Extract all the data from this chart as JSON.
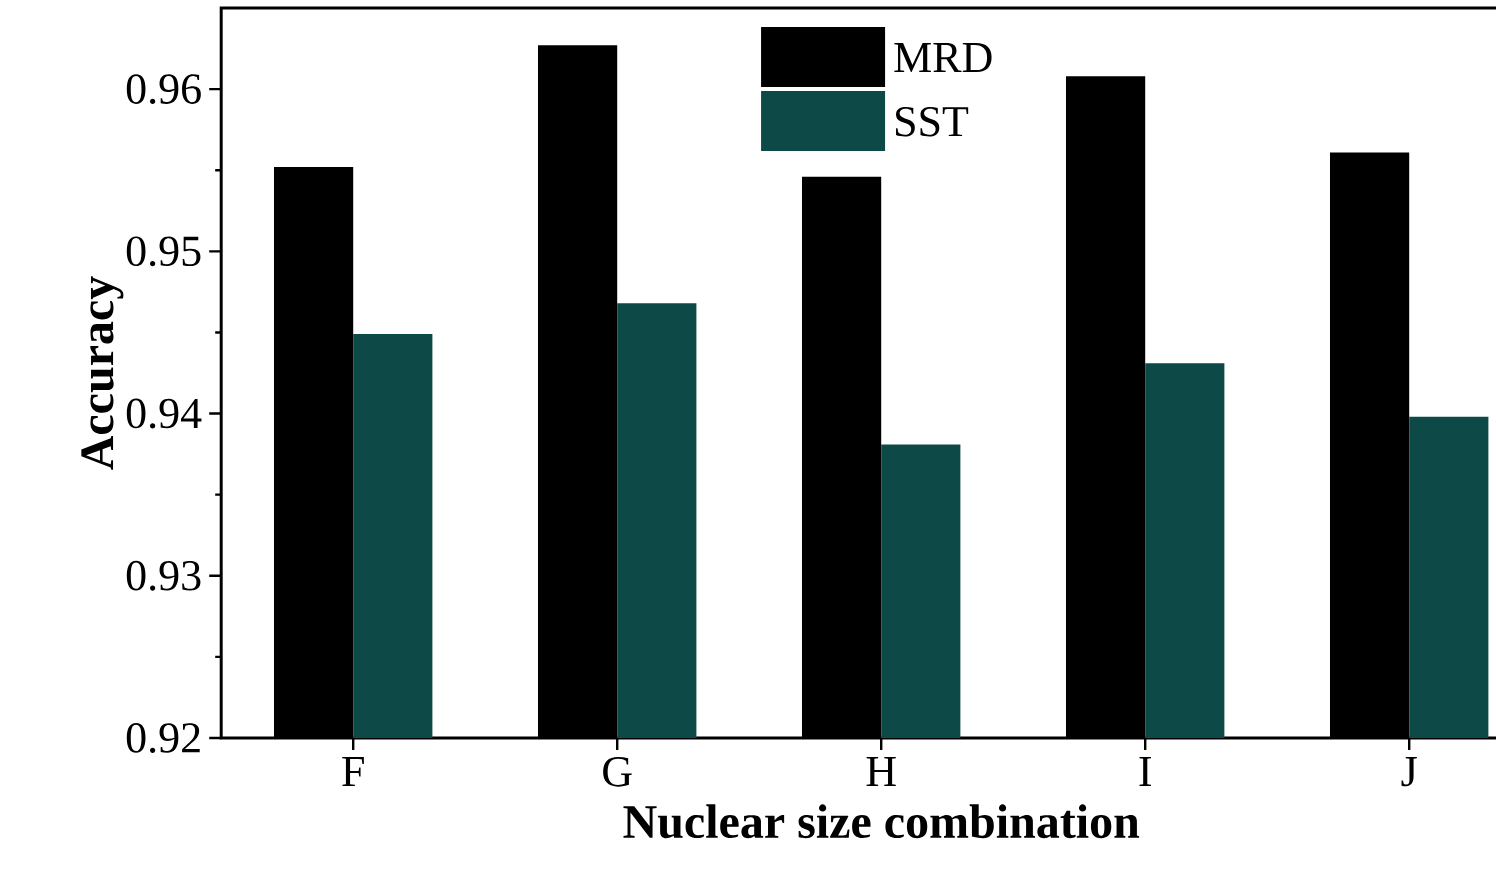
{
  "chart_data": {
    "type": "bar",
    "xlabel": "Nuclear size combination",
    "ylabel": "Accuracy",
    "categories": [
      "F",
      "G",
      "H",
      "I",
      "J"
    ],
    "series": [
      {
        "name": "MRD",
        "color": "#000000",
        "values": [
          0.9552,
          0.9627,
          0.9546,
          0.9608,
          0.9561
        ]
      },
      {
        "name": "SST",
        "color": "#0d4a47",
        "values": [
          0.9449,
          0.9468,
          0.9381,
          0.9431,
          0.9398
        ]
      }
    ],
    "ylim": [
      0.92,
      0.965
    ],
    "yticks": [
      0.92,
      0.93,
      0.94,
      0.95,
      0.96
    ],
    "grid": false,
    "legend": "top"
  }
}
